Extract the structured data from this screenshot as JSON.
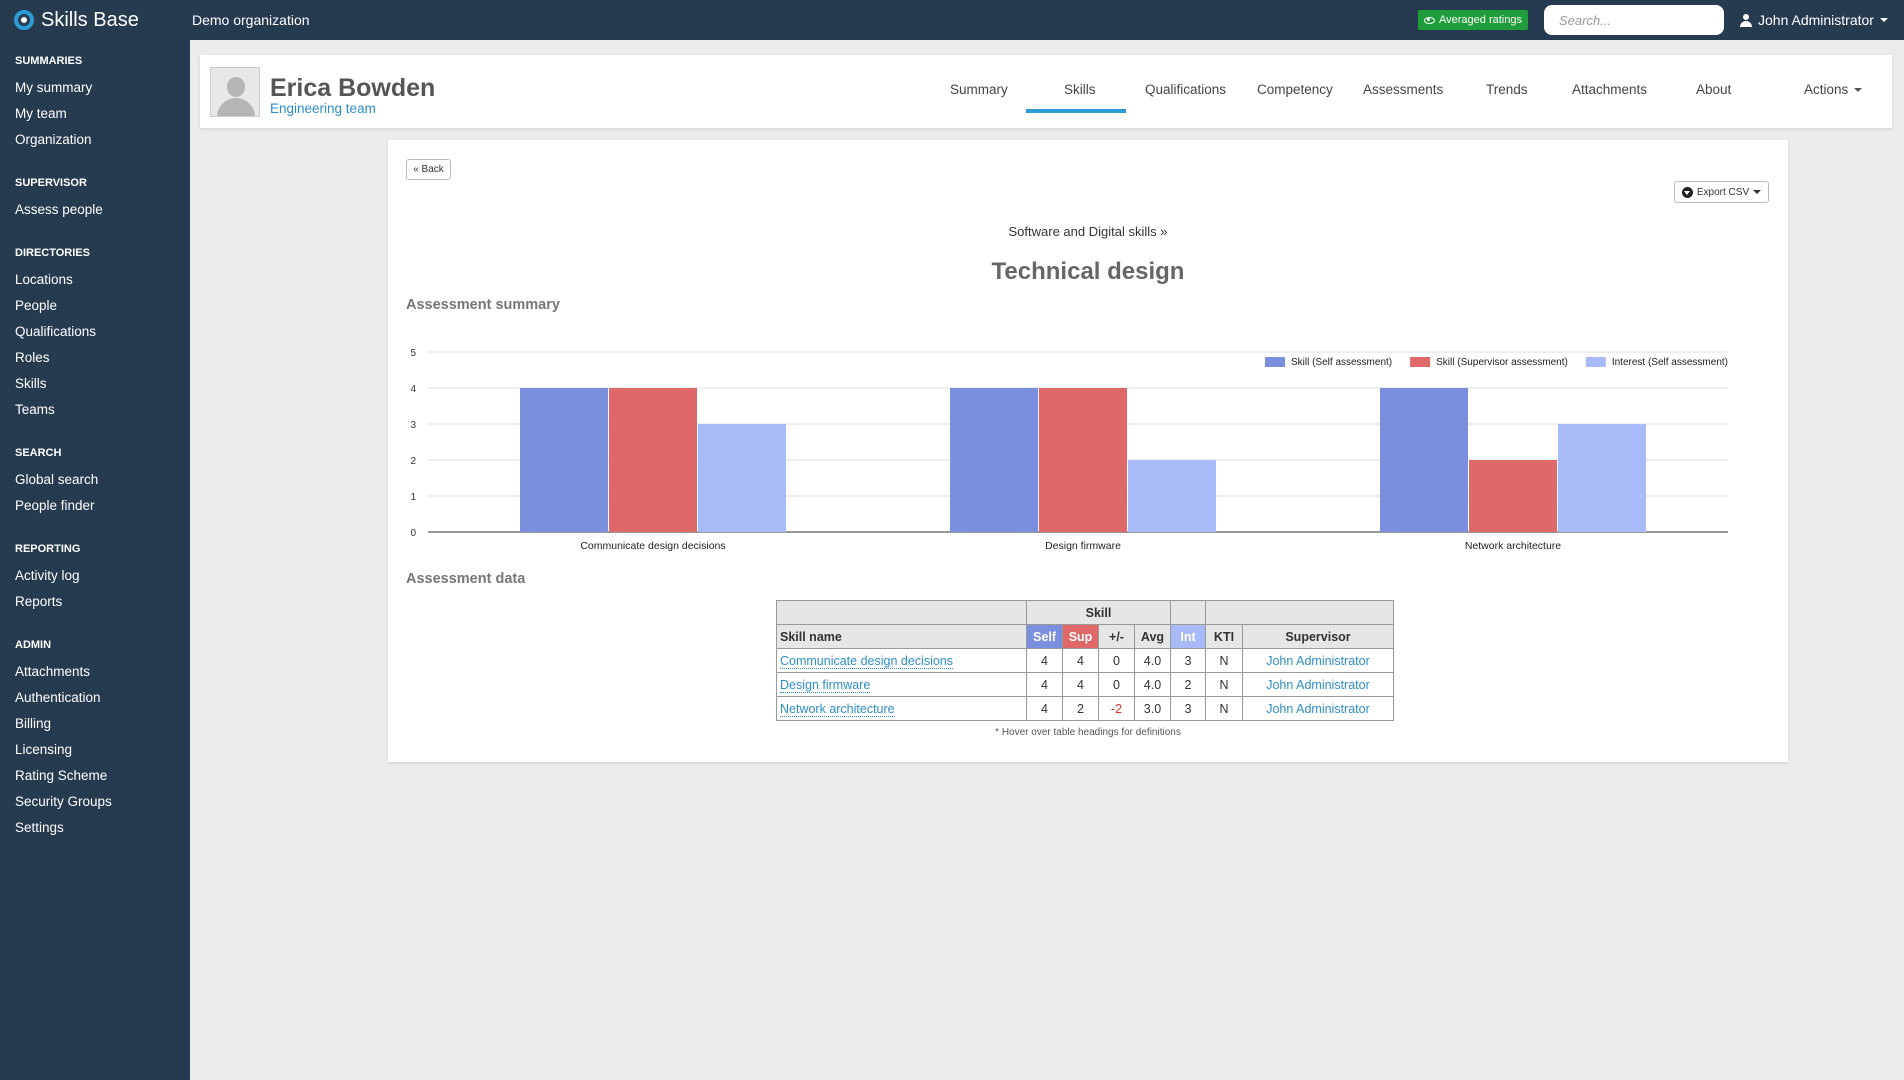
{
  "app": {
    "name": "Skills Base",
    "organization": "Demo organization"
  },
  "topbar": {
    "averaged_badge": "Averaged ratings",
    "search_placeholder": "Search...",
    "user_name": "John Administrator"
  },
  "sidebar": {
    "summaries": {
      "title": "SUMMARIES",
      "items": [
        "My summary",
        "My team",
        "Organization"
      ]
    },
    "supervisor": {
      "title": "SUPERVISOR",
      "items": [
        "Assess people"
      ]
    },
    "directories": {
      "title": "DIRECTORIES",
      "items": [
        "Locations",
        "People",
        "Qualifications",
        "Roles",
        "Skills",
        "Teams"
      ]
    },
    "search": {
      "title": "SEARCH",
      "items": [
        "Global search",
        "People finder"
      ]
    },
    "reporting": {
      "title": "REPORTING",
      "items": [
        "Activity log",
        "Reports"
      ]
    },
    "admin": {
      "title": "ADMIN",
      "items": [
        "Attachments",
        "Authentication",
        "Billing",
        "Licensing",
        "Rating Scheme",
        "Security Groups",
        "Settings"
      ]
    }
  },
  "profile": {
    "name": "Erica Bowden",
    "team": "Engineering team",
    "tabs": [
      "Summary",
      "Skills",
      "Qualifications",
      "Competency",
      "Assessments",
      "Trends",
      "Attachments",
      "About",
      "Actions"
    ],
    "active_tab": "Skills"
  },
  "panel": {
    "back_label": "« Back",
    "export_label": "Export CSV",
    "breadcrumb": "Software and Digital skills »",
    "title": "Technical design",
    "summary_heading": "Assessment summary",
    "data_heading": "Assessment data",
    "footnote": "* Hover over table headings for definitions"
  },
  "chart_data": {
    "type": "bar",
    "categories": [
      "Communicate design decisions",
      "Design firmware",
      "Network architecture"
    ],
    "series": [
      {
        "name": "Skill (Self assessment)",
        "color": "#7b8fdf",
        "values": [
          4,
          4,
          4
        ]
      },
      {
        "name": "Skill (Supervisor assessment)",
        "color": "#df6868",
        "values": [
          4,
          4,
          2
        ]
      },
      {
        "name": "Interest (Self assessment)",
        "color": "#a8bbf8",
        "values": [
          3,
          2,
          3
        ]
      }
    ],
    "ylim": [
      0,
      5
    ],
    "yticks": [
      0,
      1,
      2,
      3,
      4,
      5
    ],
    "grid": true,
    "legend": "top-right"
  },
  "table": {
    "group_header": "Skill",
    "headers": {
      "skill_name": "Skill name",
      "self": "Self",
      "sup": "Sup",
      "diff": "+/-",
      "avg": "Avg",
      "int": "Int",
      "kti": "KTI",
      "supervisor": "Supervisor"
    },
    "rows": [
      {
        "skill": "Communicate design decisions",
        "self": "4",
        "sup": "4",
        "diff": "0",
        "avg": "4.0",
        "int": "3",
        "kti": "N",
        "supervisor": "John Administrator"
      },
      {
        "skill": "Design firmware",
        "self": "4",
        "sup": "4",
        "diff": "0",
        "avg": "4.0",
        "int": "2",
        "kti": "N",
        "supervisor": "John Administrator"
      },
      {
        "skill": "Network architecture",
        "self": "4",
        "sup": "2",
        "diff": "-2",
        "avg": "3.0",
        "int": "3",
        "kti": "N",
        "supervisor": "John Administrator"
      }
    ]
  }
}
